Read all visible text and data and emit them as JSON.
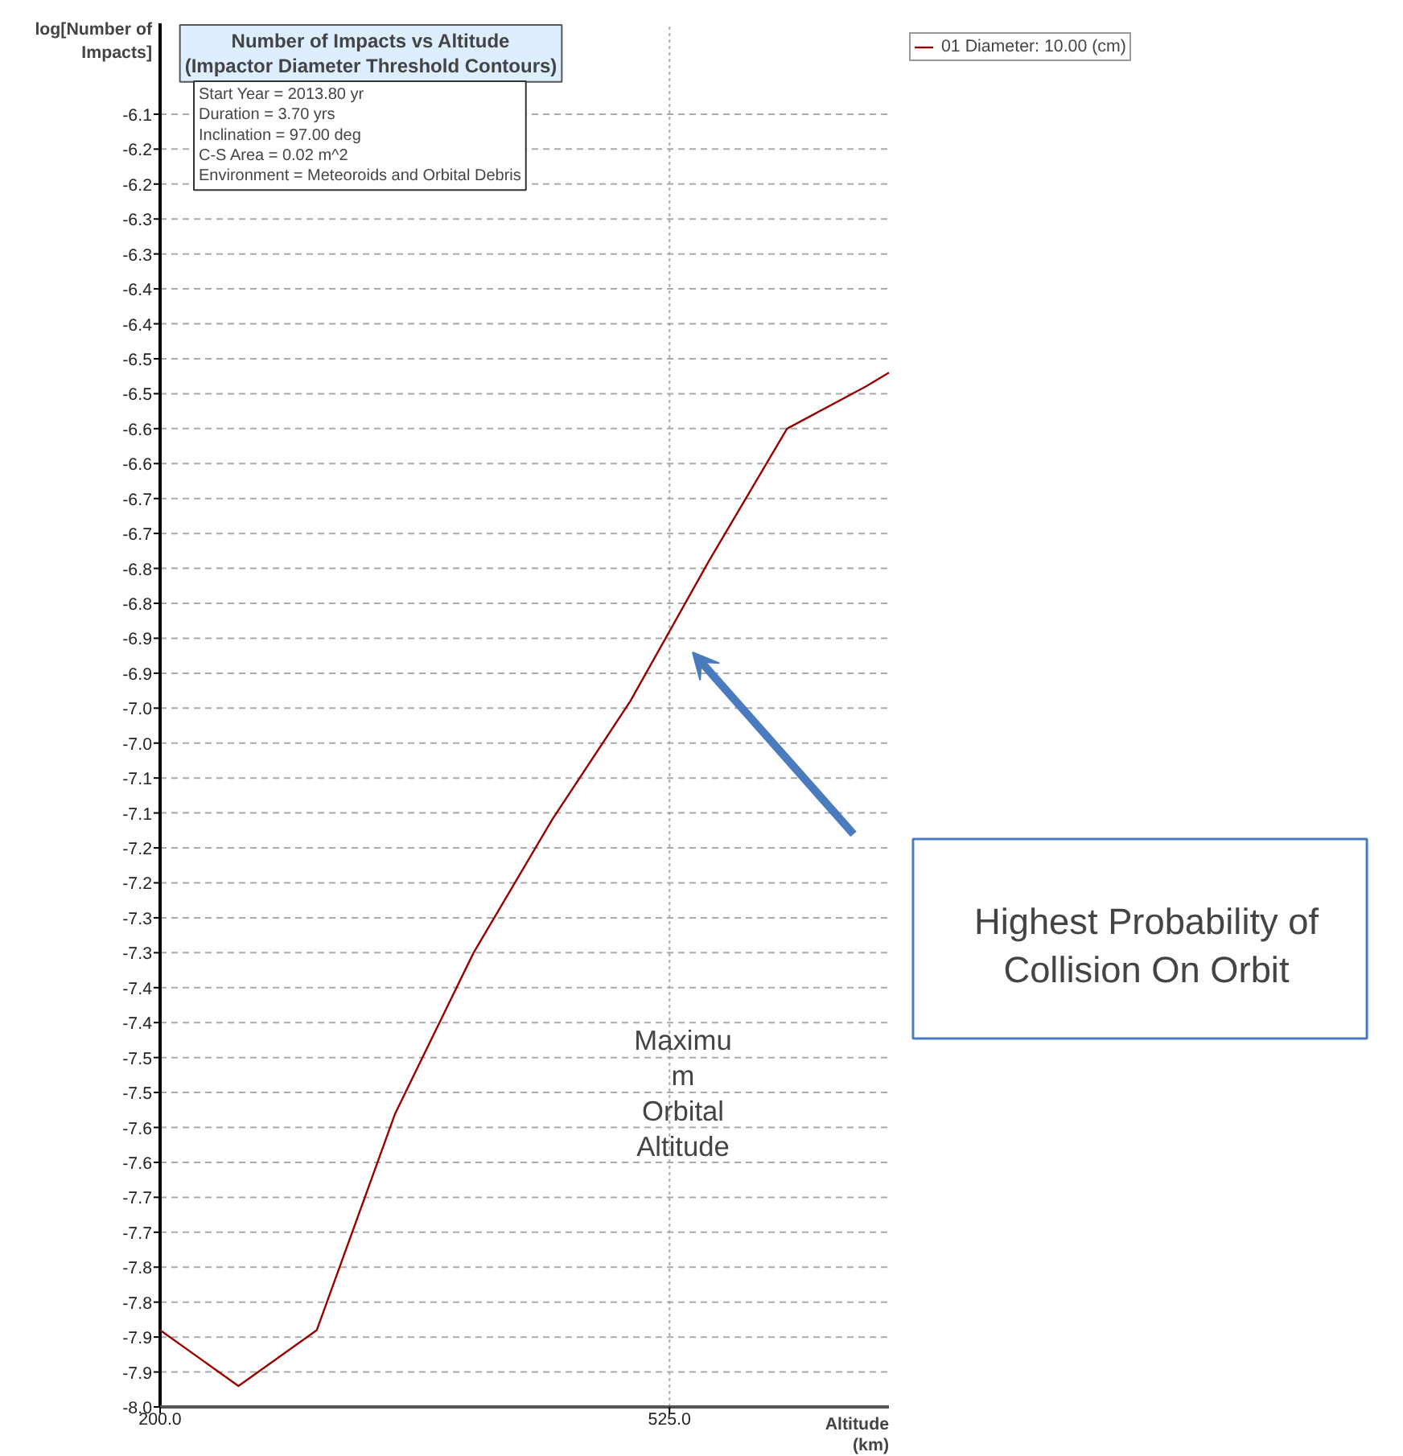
{
  "chart_data": {
    "type": "line",
    "title": "Number of Impacts vs Altitude\n(Impactor Diameter Threshold Contours)",
    "xlabel": "Altitude\n(km)",
    "ylabel": "log[Number of\nImpacts]",
    "x": [
      200,
      250,
      300,
      350,
      400,
      450,
      500,
      550,
      600,
      650,
      665
    ],
    "series": [
      {
        "name": "01 Diameter: 10.00 (cm)",
        "color": "#990000",
        "values": [
          -7.86,
          -7.94,
          -7.86,
          -7.55,
          -7.32,
          -7.13,
          -6.96,
          -6.76,
          -6.57,
          -6.51,
          -6.49
        ]
      }
    ],
    "xlim": [
      200,
      665
    ],
    "xticks": [
      {
        "value": 200,
        "label": "200.0"
      },
      {
        "value": 525,
        "label": "525.0"
      }
    ],
    "ylim": [
      -7.97,
      -5.99
    ],
    "yticks": [
      {
        "value": -7.97,
        "label": "-8.0"
      },
      {
        "value": -7.92,
        "label": "-7.9"
      },
      {
        "value": -7.87,
        "label": "-7.9"
      },
      {
        "value": -7.82,
        "label": "-7.8"
      },
      {
        "value": -7.77,
        "label": "-7.8"
      },
      {
        "value": -7.72,
        "label": "-7.7"
      },
      {
        "value": -7.67,
        "label": "-7.7"
      },
      {
        "value": -7.62,
        "label": "-7.6"
      },
      {
        "value": -7.57,
        "label": "-7.6"
      },
      {
        "value": -7.52,
        "label": "-7.5"
      },
      {
        "value": -7.47,
        "label": "-7.5"
      },
      {
        "value": -7.42,
        "label": "-7.4"
      },
      {
        "value": -7.37,
        "label": "-7.4"
      },
      {
        "value": -7.32,
        "label": "-7.3"
      },
      {
        "value": -7.27,
        "label": "-7.3"
      },
      {
        "value": -7.22,
        "label": "-7.2"
      },
      {
        "value": -7.17,
        "label": "-7.2"
      },
      {
        "value": -7.12,
        "label": "-7.1"
      },
      {
        "value": -7.07,
        "label": "-7.1"
      },
      {
        "value": -7.02,
        "label": "-7.0"
      },
      {
        "value": -6.97,
        "label": "-7.0"
      },
      {
        "value": -6.92,
        "label": "-6.9"
      },
      {
        "value": -6.87,
        "label": "-6.9"
      },
      {
        "value": -6.82,
        "label": "-6.8"
      },
      {
        "value": -6.77,
        "label": "-6.8"
      },
      {
        "value": -6.72,
        "label": "-6.7"
      },
      {
        "value": -6.67,
        "label": "-6.7"
      },
      {
        "value": -6.62,
        "label": "-6.6"
      },
      {
        "value": -6.57,
        "label": "-6.6"
      },
      {
        "value": -6.52,
        "label": "-6.5"
      },
      {
        "value": -6.47,
        "label": "-6.5"
      },
      {
        "value": -6.42,
        "label": "-6.4"
      },
      {
        "value": -6.37,
        "label": "-6.4"
      },
      {
        "value": -6.32,
        "label": "-6.3"
      },
      {
        "value": -6.27,
        "label": "-6.3"
      },
      {
        "value": -6.22,
        "label": "-6.2"
      },
      {
        "value": -6.17,
        "label": "-6.2"
      },
      {
        "value": -6.12,
        "label": "-6.1"
      }
    ],
    "grid": true,
    "legend": "top right",
    "annotations": [
      "Start Year = 2013.80 yr\nDuration = 3.70 yrs\nInclination = 97.00 deg\nC-S Area = 0.02 m^2\nEnvironment = Meteoroids and Orbital Debris",
      "Maximu\nm\nOrbital\nAltitude",
      "Highest Probability of\nCollision On Orbit"
    ]
  }
}
